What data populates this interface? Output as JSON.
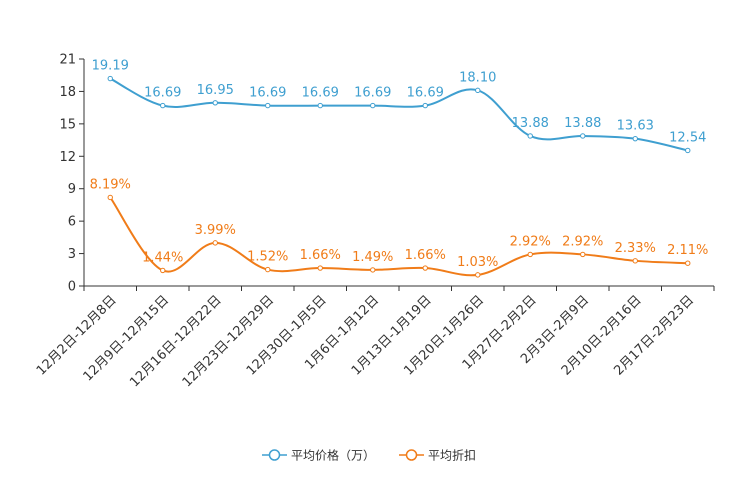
{
  "chart_data": {
    "type": "line",
    "title": "",
    "xlabel": "",
    "ylabel": "",
    "ylim": [
      0,
      21
    ],
    "yticks": [
      0,
      3,
      6,
      9,
      12,
      15,
      18,
      21
    ],
    "grid": false,
    "legend_position": "bottom",
    "categories": [
      "12月2日-12月8日",
      "12月9日-12月15日",
      "12月16日-12月22日",
      "12月23日-12月29日",
      "12月30日-1月5日",
      "1月6日-1月12日",
      "1月13日-1月19日",
      "1月20日-1月26日",
      "1月27日-2月2日",
      "2月3日-2月9日",
      "2月10日-2月16日",
      "2月17日-2月23日"
    ],
    "series": [
      {
        "name": "平均价格（万）",
        "color": "#3f9fd0",
        "values": [
          19.19,
          16.69,
          16.95,
          16.69,
          16.69,
          16.69,
          16.69,
          18.1,
          13.88,
          13.88,
          13.63,
          12.54
        ],
        "labels": [
          "19.19",
          "16.69",
          "16.95",
          "16.69",
          "16.69",
          "16.69",
          "16.69",
          "18.10",
          "13.88",
          "13.88",
          "13.63",
          "12.54"
        ]
      },
      {
        "name": "平均折扣",
        "color": "#f07c19",
        "values": [
          8.19,
          1.44,
          3.99,
          1.52,
          1.66,
          1.49,
          1.66,
          1.03,
          2.92,
          2.92,
          2.33,
          2.11
        ],
        "labels": [
          "8.19%",
          "1.44%",
          "3.99%",
          "1.52%",
          "1.66%",
          "1.49%",
          "1.66%",
          "1.03%",
          "2.92%",
          "2.92%",
          "2.33%",
          "2.11%"
        ]
      }
    ]
  }
}
